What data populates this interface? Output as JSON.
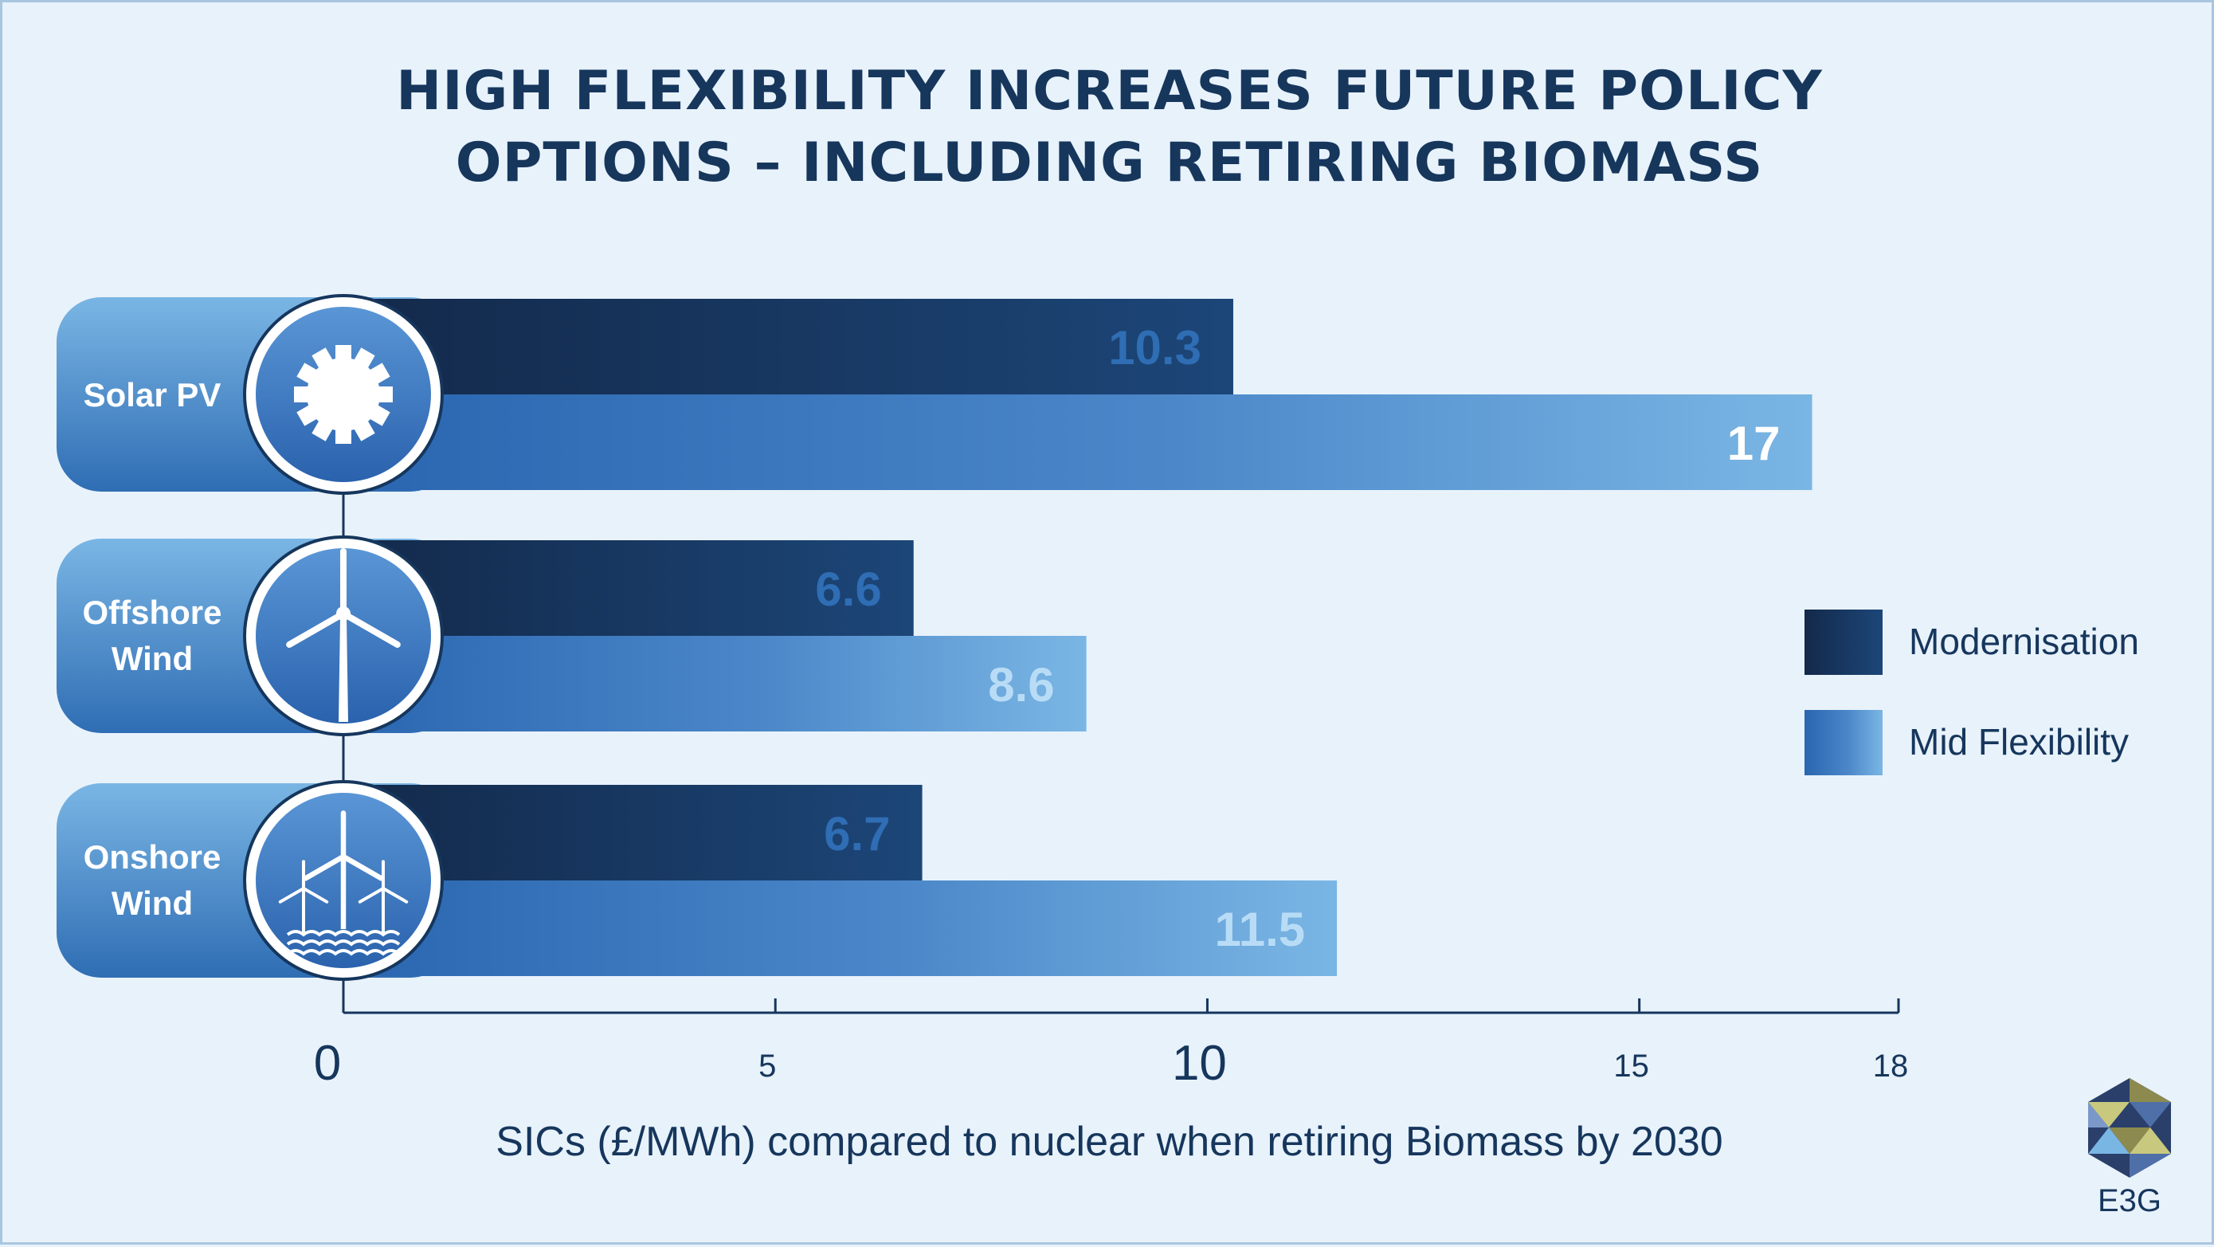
{
  "title_line1": "HIGH FLEXIBILITY INCREASES FUTURE POLICY",
  "title_line2": "OPTIONS – INCLUDING RETIRING BIOMASS",
  "logo_text": "E3G",
  "icons": [
    "sun-icon",
    "offshore-wind-turbine-icon",
    "onshore-wind-farm-icon",
    "e3g-logo-icon"
  ],
  "colors": {
    "modernisation": "#16365c",
    "mid_flexibility": "#2f6db4",
    "mid_flexibility_light": "#7ab6e4",
    "category_pill": "#3a78bf",
    "background": "#e8f2fb"
  },
  "chart_data": {
    "type": "bar",
    "orientation": "horizontal",
    "categories": [
      [
        "Solar PV"
      ],
      [
        "Offshore",
        "Wind"
      ],
      [
        "Onshore",
        "Wind"
      ]
    ],
    "series": [
      {
        "name": "Modernisation",
        "values": [
          10.3,
          6.6,
          6.7
        ]
      },
      {
        "name": "Mid Flexibility",
        "values": [
          17,
          8.6,
          11.5
        ]
      }
    ],
    "value_labels": [
      [
        "10.3",
        "6.6",
        "6.7"
      ],
      [
        "17",
        "8.6",
        "11.5"
      ]
    ],
    "xlabel": "SICs (£/MWh) compared to nuclear when retiring Biomass by 2030",
    "xlim": [
      0,
      18
    ],
    "ticks": [
      "0",
      "5",
      "10",
      "15",
      "18"
    ],
    "legend_position": "right",
    "grid": false
  }
}
